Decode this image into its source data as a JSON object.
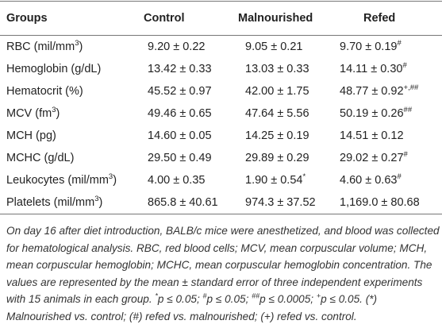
{
  "table": {
    "header": [
      "Groups",
      "Control",
      "Malnourished",
      "Refed"
    ],
    "rows": [
      [
        {
          "text": "RBC (mil/mm",
          "sup": "3",
          "tail": ")"
        },
        {
          "text": "9.20 ± 0.22"
        },
        {
          "text": "9.05 ± 0.21"
        },
        {
          "text": "9.70 ± 0.19",
          "sup": "#"
        }
      ],
      [
        {
          "text": "Hemoglobin (g/dL)"
        },
        {
          "text": "13.42 ± 0.33"
        },
        {
          "text": "13.03 ± 0.33"
        },
        {
          "text": "14.11 ± 0.30",
          "sup": "#"
        }
      ],
      [
        {
          "text": "Hematocrit (%)"
        },
        {
          "text": "45.52 ± 0.97"
        },
        {
          "text": "42.00 ± 1.75"
        },
        {
          "text": "48.77 ± 0.92",
          "sup": "+,##"
        }
      ],
      [
        {
          "text": "MCV (fm",
          "sup": "3",
          "tail": ")"
        },
        {
          "text": "49.46 ± 0.65"
        },
        {
          "text": "47.64 ± 5.56"
        },
        {
          "text": "50.19 ± 0.26",
          "sup": "##"
        }
      ],
      [
        {
          "text": "MCH (pg)"
        },
        {
          "text": "14.60 ± 0.05"
        },
        {
          "text": "14.25 ± 0.19"
        },
        {
          "text": "14.51 ± 0.12"
        }
      ],
      [
        {
          "text": "MCHC (g/dL)"
        },
        {
          "text": "29.50 ± 0.49"
        },
        {
          "text": "29.89 ± 0.29"
        },
        {
          "text": "29.02 ± 0.27",
          "sup": "#"
        }
      ],
      [
        {
          "text": "Leukocytes (mil/mm",
          "sup": "3",
          "tail": ")"
        },
        {
          "text": "4.00 ± 0.35"
        },
        {
          "text": "1.90 ± 0.54",
          "sup": "*"
        },
        {
          "text": "4.60 ± 0.63",
          "sup": "#"
        }
      ],
      [
        {
          "text": "Platelets (mil/mm",
          "sup": "3",
          "tail": ")"
        },
        {
          "text": "865.8 ± 40.61"
        },
        {
          "text": "974.3 ± 37.52"
        },
        {
          "text": "1,169.0 ± 80.68"
        }
      ]
    ]
  },
  "footnote": [
    {
      "text": "On day 16 after diet introduction, BALB/c mice were anesthetized, and blood was collected for hematological analysis. RBC, red blood cells; MCV, mean corpuscular volume; MCH, mean corpuscular hemoglobin; MCHC, mean corpuscular hemoglobin concentration. The values are represented by the mean ± standard error of three independent experiments with 15 animals in each group. "
    },
    {
      "sup": "*"
    },
    {
      "text": "p ≤ 0.05; "
    },
    {
      "sup": "#"
    },
    {
      "text": "p ≤ 0.05; "
    },
    {
      "sup": "##"
    },
    {
      "text": "p ≤ 0.0005; "
    },
    {
      "sup": "+"
    },
    {
      "text": "p ≤ 0.05. (*) Malnourished vs. control; (#) refed vs. malnourished; (+) refed vs. control."
    }
  ]
}
